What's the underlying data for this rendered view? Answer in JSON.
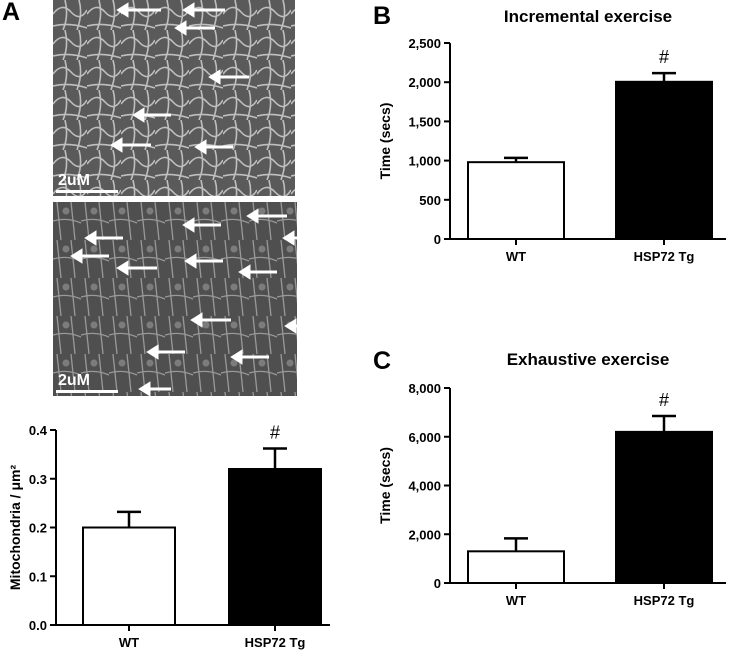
{
  "panel_labels": {
    "a": "A",
    "b": "B",
    "c": "C"
  },
  "micrographs": [
    {
      "name": "micrograph-wt",
      "scale_label": "2uM"
    },
    {
      "name": "micrograph-hsp72",
      "scale_label": "2uM"
    }
  ],
  "chart_data": [
    {
      "type": "bar",
      "title": "",
      "ylabel": "Mitochondria / μm²",
      "categories": [
        "WT",
        "HSP72 Tg"
      ],
      "values": [
        0.2,
        0.32
      ],
      "errors": [
        0.032,
        0.042
      ],
      "ylim": [
        0,
        0.4
      ],
      "yticks": [
        0.0,
        0.1,
        0.2,
        0.3,
        0.4
      ],
      "ytick_labels": [
        "0.0",
        "0.1",
        "0.2",
        "0.3",
        "0.4"
      ],
      "bar_colors": [
        "#ffffff",
        "#000000"
      ],
      "annotations": [
        "",
        "#"
      ]
    },
    {
      "type": "bar",
      "title": "Incremental exercise",
      "ylabel": "Time (secs)",
      "categories": [
        "WT",
        "HSP72 Tg"
      ],
      "values": [
        980,
        2005
      ],
      "errors": [
        55,
        110
      ],
      "ylim": [
        0,
        2500
      ],
      "yticks": [
        0,
        500,
        1000,
        1500,
        2000,
        2500
      ],
      "ytick_labels": [
        "0",
        "500",
        "1,000",
        "1,500",
        "2,000",
        "2,500"
      ],
      "bar_colors": [
        "#ffffff",
        "#000000"
      ],
      "annotations": [
        "",
        "#"
      ]
    },
    {
      "type": "bar",
      "title": "Exhaustive exercise",
      "ylabel": "Time (secs)",
      "categories": [
        "WT",
        "HSP72 Tg"
      ],
      "values": [
        1300,
        6200
      ],
      "errors": [
        530,
        650
      ],
      "ylim": [
        0,
        8000
      ],
      "yticks": [
        0,
        2000,
        4000,
        6000,
        8000
      ],
      "ytick_labels": [
        "0",
        "2,000",
        "4,000",
        "6,000",
        "8,000"
      ],
      "bar_colors": [
        "#ffffff",
        "#000000"
      ],
      "annotations": [
        "",
        "#"
      ]
    }
  ]
}
